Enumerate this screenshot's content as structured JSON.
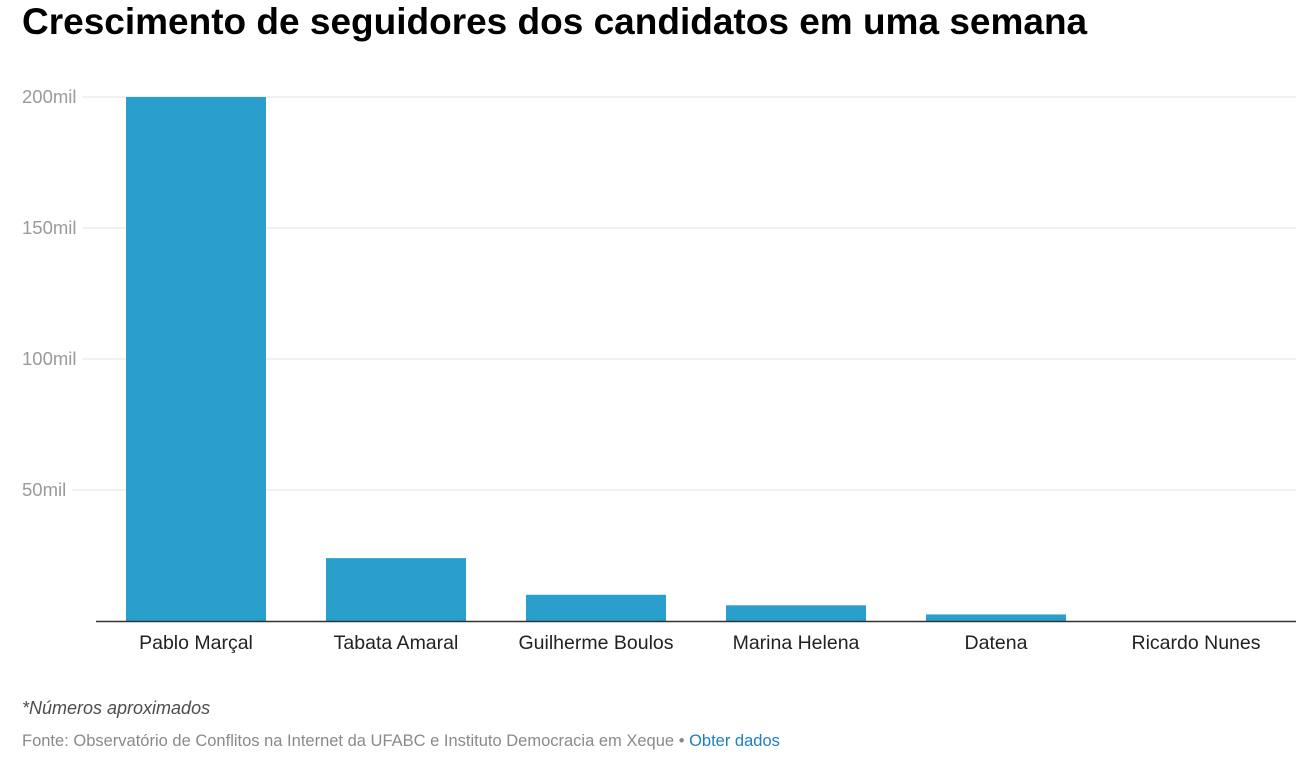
{
  "title": "Crescimento de seguidores dos candidatos em uma semana",
  "note": "*Números aproximados",
  "source": {
    "text": "Fonte: Observatório de Conflitos na Internet da UFABC e Instituto Democracia em Xeque",
    "separator": "•",
    "link_label": "Obter dados"
  },
  "colors": {
    "bar": "#2b9fcc",
    "grid": "#e3e3e3",
    "axis": "#333333",
    "tick_label": "#9a9a9a",
    "category_label": "#222222",
    "link": "#1c7fc1"
  },
  "chart_data": {
    "type": "bar",
    "categories": [
      "Pablo Marçal",
      "Tabata Amaral",
      "Guilherme Boulos",
      "Marina Helena",
      "Datena",
      "Ricardo Nunes"
    ],
    "values": [
      200000,
      24000,
      10000,
      6000,
      2500,
      0
    ],
    "ylim": [
      0,
      200000
    ],
    "yticks": [
      {
        "value": 50000,
        "label": "50mil"
      },
      {
        "value": 100000,
        "label": "100mil"
      },
      {
        "value": 150000,
        "label": "150mil"
      },
      {
        "value": 200000,
        "label": "200mil"
      }
    ],
    "grid": true,
    "legend": "none",
    "xlabel": "",
    "ylabel": ""
  }
}
